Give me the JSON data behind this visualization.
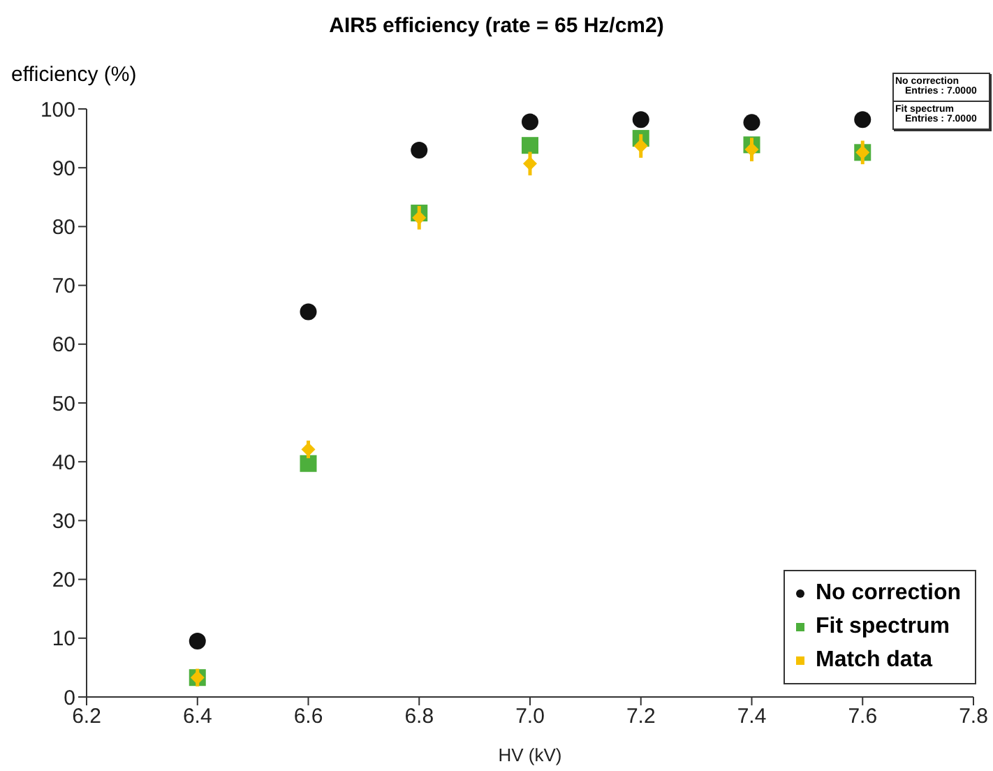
{
  "chart_data": {
    "type": "scatter",
    "title": "AIR5 efficiency (rate = 65 Hz/cm2)",
    "xlabel": "HV (kV)",
    "ylabel": "efficiency (%)",
    "x": [
      6.4,
      6.6,
      6.8,
      7.0,
      7.2,
      7.4,
      7.6
    ],
    "series": [
      {
        "name": "No correction",
        "color": "#111111",
        "marker": "circle",
        "values": [
          9.5,
          65.5,
          93,
          97.8,
          98.2,
          97.7,
          98.2
        ]
      },
      {
        "name": "Fit spectrum",
        "color": "#4daf3c",
        "marker": "square",
        "values": [
          3.3,
          39.7,
          82.3,
          93.8,
          95,
          93.9,
          92.6
        ]
      },
      {
        "name": "Match data",
        "color": "#f5c000",
        "marker": "diamond",
        "values": [
          3.3,
          42.1,
          81.5,
          90.7,
          93.7,
          93.1,
          92.6
        ],
        "errors": [
          1.5,
          1.5,
          2,
          2,
          2,
          2,
          2
        ]
      }
    ],
    "xlim": [
      6.2,
      7.8
    ],
    "xticks": [
      6.2,
      6.4,
      6.6,
      6.8,
      {
        "value": 7,
        "label": "7.0"
      },
      7.2,
      7.4,
      7.6,
      7.8
    ],
    "ylim": [
      0,
      100
    ],
    "yticks": [
      0,
      10,
      20,
      30,
      40,
      50,
      60,
      70,
      80,
      90,
      100
    ],
    "grid": false,
    "legend": "bottom right",
    "annotations": [
      "No correction",
      "Entries : 7.0000",
      "Fit spectrum",
      "Entries : 7.0000"
    ]
  }
}
